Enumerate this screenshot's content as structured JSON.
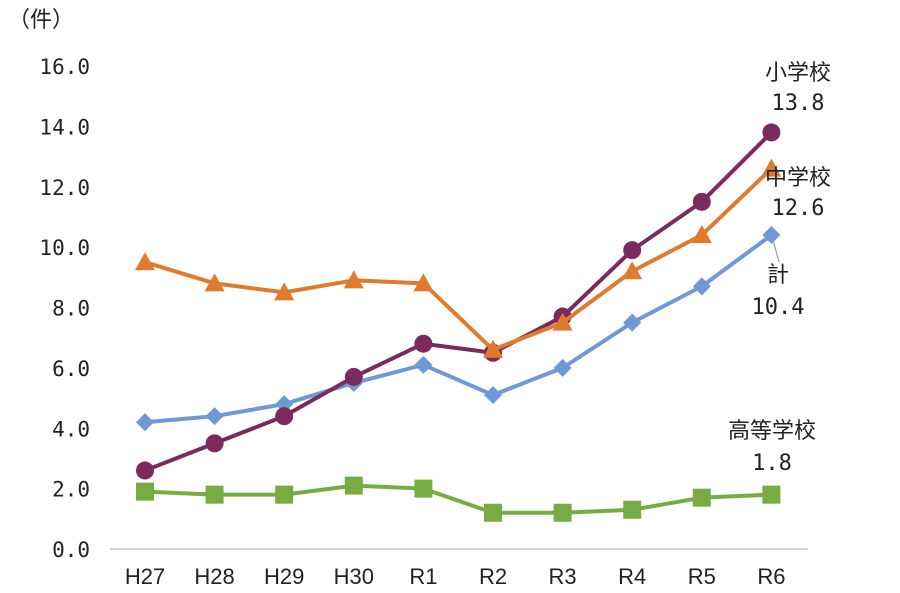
{
  "chart_data": {
    "type": "line",
    "unit_label": "（件）",
    "categories": [
      "H27",
      "H28",
      "H29",
      "H30",
      "R1",
      "R2",
      "R3",
      "R4",
      "R5",
      "R6"
    ],
    "ylim": [
      0,
      16
    ],
    "ytick_values": [
      0,
      2,
      4,
      6,
      8,
      10,
      12,
      14,
      16
    ],
    "ytick_labels": [
      "0.0",
      "2.0",
      "4.0",
      "6.0",
      "8.0",
      "10.0",
      "12.0",
      "14.0",
      "16.0"
    ],
    "series": [
      {
        "name": "小学校",
        "color": "#7b2a5e",
        "marker": "circle",
        "values": [
          2.6,
          3.5,
          4.4,
          5.7,
          6.8,
          6.5,
          7.7,
          9.9,
          11.5,
          13.8
        ],
        "annotation": {
          "label": "小学校",
          "value": "13.8"
        }
      },
      {
        "name": "中学校",
        "color": "#e07b2e",
        "marker": "triangle",
        "values": [
          9.5,
          8.8,
          8.5,
          8.9,
          8.8,
          6.6,
          7.5,
          9.2,
          10.4,
          12.6
        ],
        "annotation": {
          "label": "中学校",
          "value": "12.6"
        }
      },
      {
        "name": "計",
        "color": "#6f98d6",
        "marker": "diamond",
        "values": [
          4.2,
          4.4,
          4.8,
          5.5,
          6.1,
          5.1,
          6.0,
          7.5,
          8.7,
          10.4
        ],
        "annotation": {
          "label": "計",
          "value": "10.4"
        }
      },
      {
        "name": "高等学校",
        "color": "#77ac43",
        "marker": "square",
        "values": [
          1.9,
          1.8,
          1.8,
          2.1,
          2.0,
          1.2,
          1.2,
          1.3,
          1.7,
          1.8
        ],
        "annotation": {
          "label": "高等学校",
          "value": "1.8"
        }
      }
    ]
  }
}
